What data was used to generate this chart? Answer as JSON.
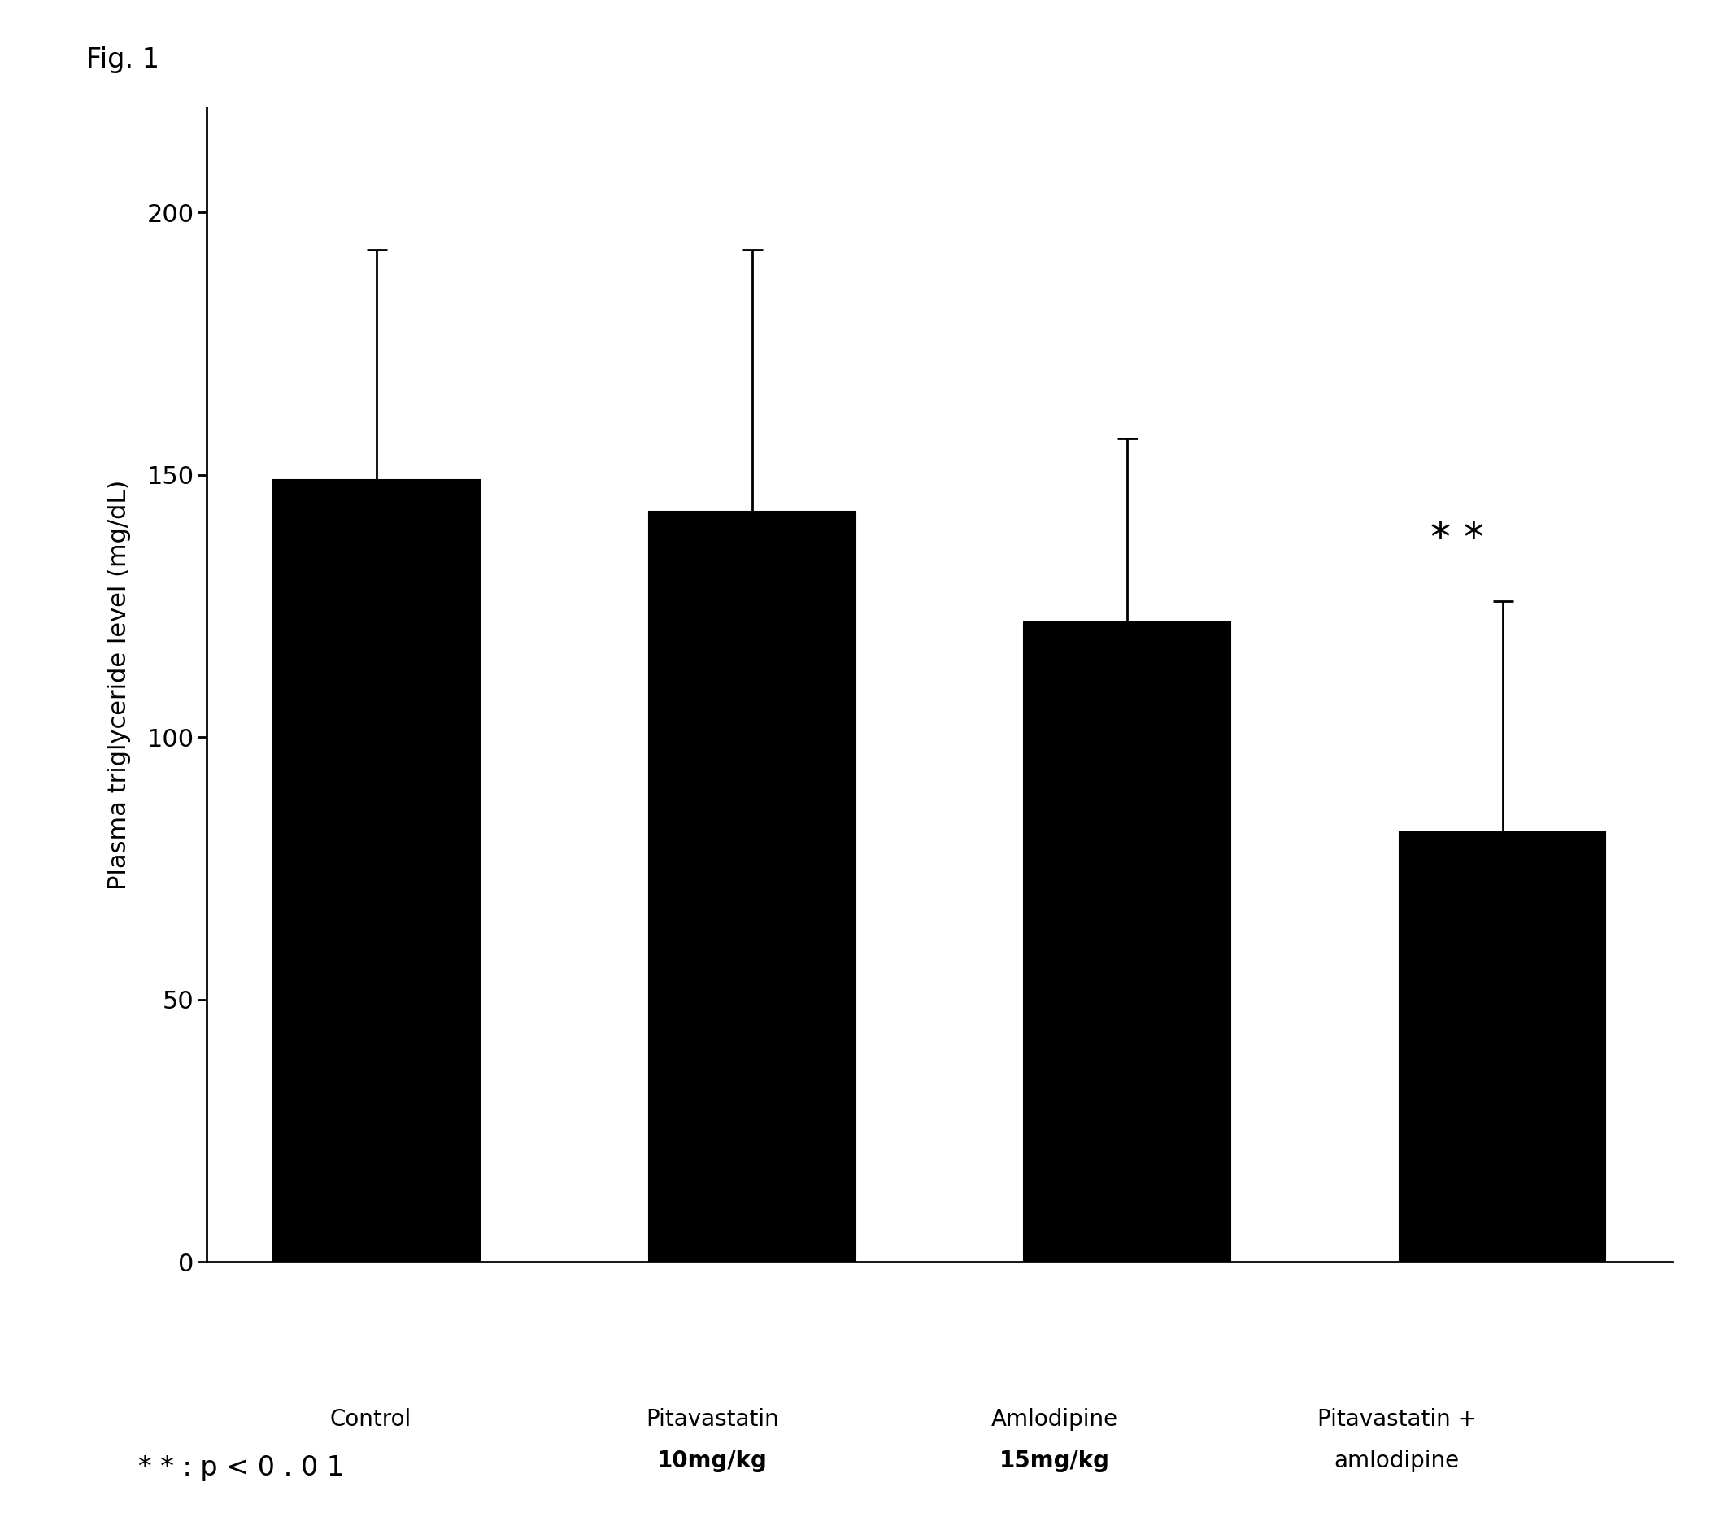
{
  "categories": [
    "Control",
    "Pitavastatin\n10mg/kg",
    "Amlodipine\n15mg/kg",
    "Pitavastatin +\namlodipine"
  ],
  "cat_line1": [
    "Control",
    "Pitavastatin",
    "Amlodipine",
    "Pitavastatin +"
  ],
  "cat_line2": [
    "",
    "10mg/kg",
    "15mg/kg",
    "amlodipine"
  ],
  "cat_line2_bold": [
    false,
    true,
    true,
    false
  ],
  "values": [
    149,
    143,
    122,
    82
  ],
  "errors_upper": [
    44,
    50,
    35,
    44
  ],
  "errors_lower": [
    44,
    50,
    35,
    30
  ],
  "bar_color": "#000000",
  "bar_edge_color": "#000000",
  "ylabel": "Plasma triglyceride level (mg/dL)",
  "ylim": [
    0,
    220
  ],
  "yticks": [
    0,
    50,
    100,
    150,
    200
  ],
  "fig_label": "Fig. 1",
  "annotation_text": "* * : p < 0 . 0 1",
  "significance_stars": "* *",
  "significance_bar_index": 3,
  "bar_width": 0.55,
  "background_color": "#ffffff",
  "label_fontsize": 22,
  "tick_fontsize": 22,
  "fig_label_fontsize": 24,
  "annotation_fontsize": 24,
  "stars_fontsize": 36,
  "category_label_fontsize": 20
}
